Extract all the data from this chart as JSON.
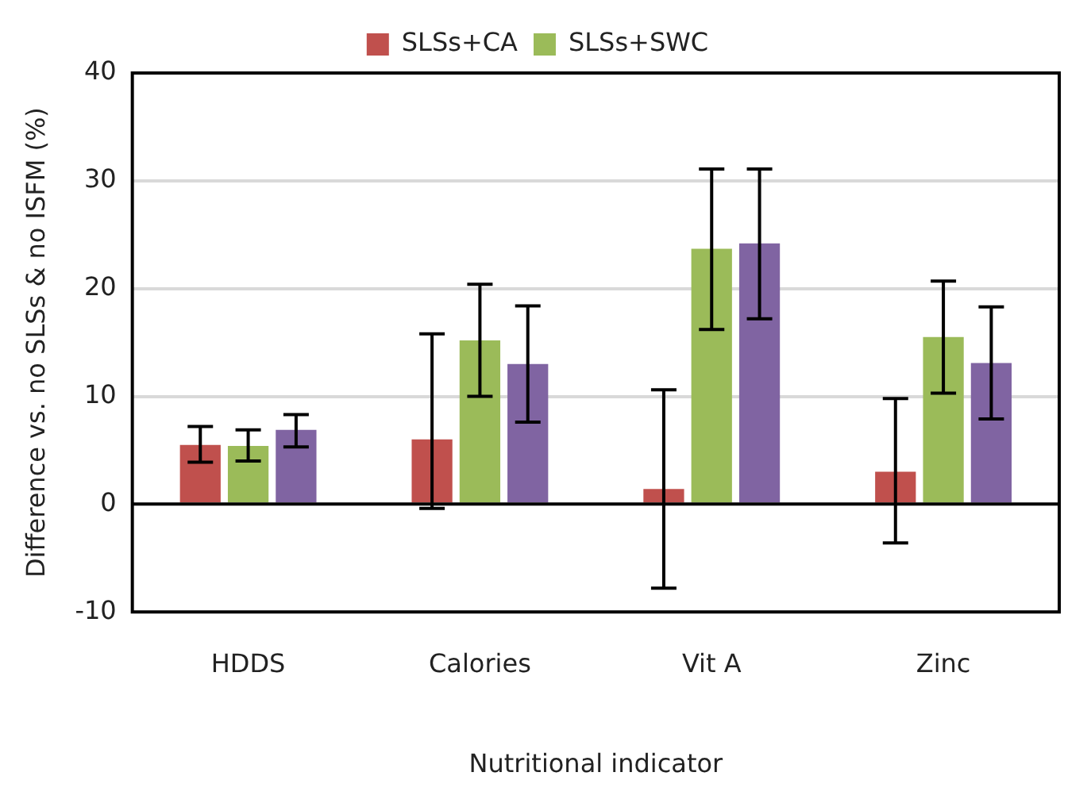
{
  "chart_data": {
    "type": "bar",
    "ylabel": "Difference vs. no SLSs & no ISFM (%)",
    "xlabel": "Nutritional indicator",
    "categories": [
      "HDDS",
      "Calories",
      "Vit A",
      "Zinc"
    ],
    "series": [
      {
        "name": "SLSs+CA",
        "color": "#c0504d",
        "values": [
          5.5,
          6.0,
          1.4,
          3.0
        ],
        "errors": [
          [
            3.9,
            7.2
          ],
          [
            -0.4,
            15.8
          ],
          [
            -7.8,
            10.6
          ],
          [
            -3.6,
            9.8
          ]
        ]
      },
      {
        "name": "SLSs+SWC",
        "color": "#9bbb59",
        "values": [
          5.4,
          15.2,
          23.7,
          15.5
        ],
        "errors": [
          [
            4.0,
            6.9
          ],
          [
            10.0,
            20.4
          ],
          [
            16.2,
            31.1
          ],
          [
            10.3,
            20.7
          ]
        ]
      },
      {
        "color": "#8064a2",
        "values": [
          6.9,
          13.0,
          24.2,
          13.1
        ],
        "errors": [
          [
            5.3,
            8.3
          ],
          [
            7.6,
            18.4
          ],
          [
            17.2,
            31.1
          ],
          [
            7.9,
            18.3
          ]
        ]
      }
    ],
    "ylim": [
      -10,
      40
    ],
    "yticks": [
      -10,
      0,
      10,
      20,
      30,
      40
    ],
    "grid": "y",
    "legend": "top"
  }
}
